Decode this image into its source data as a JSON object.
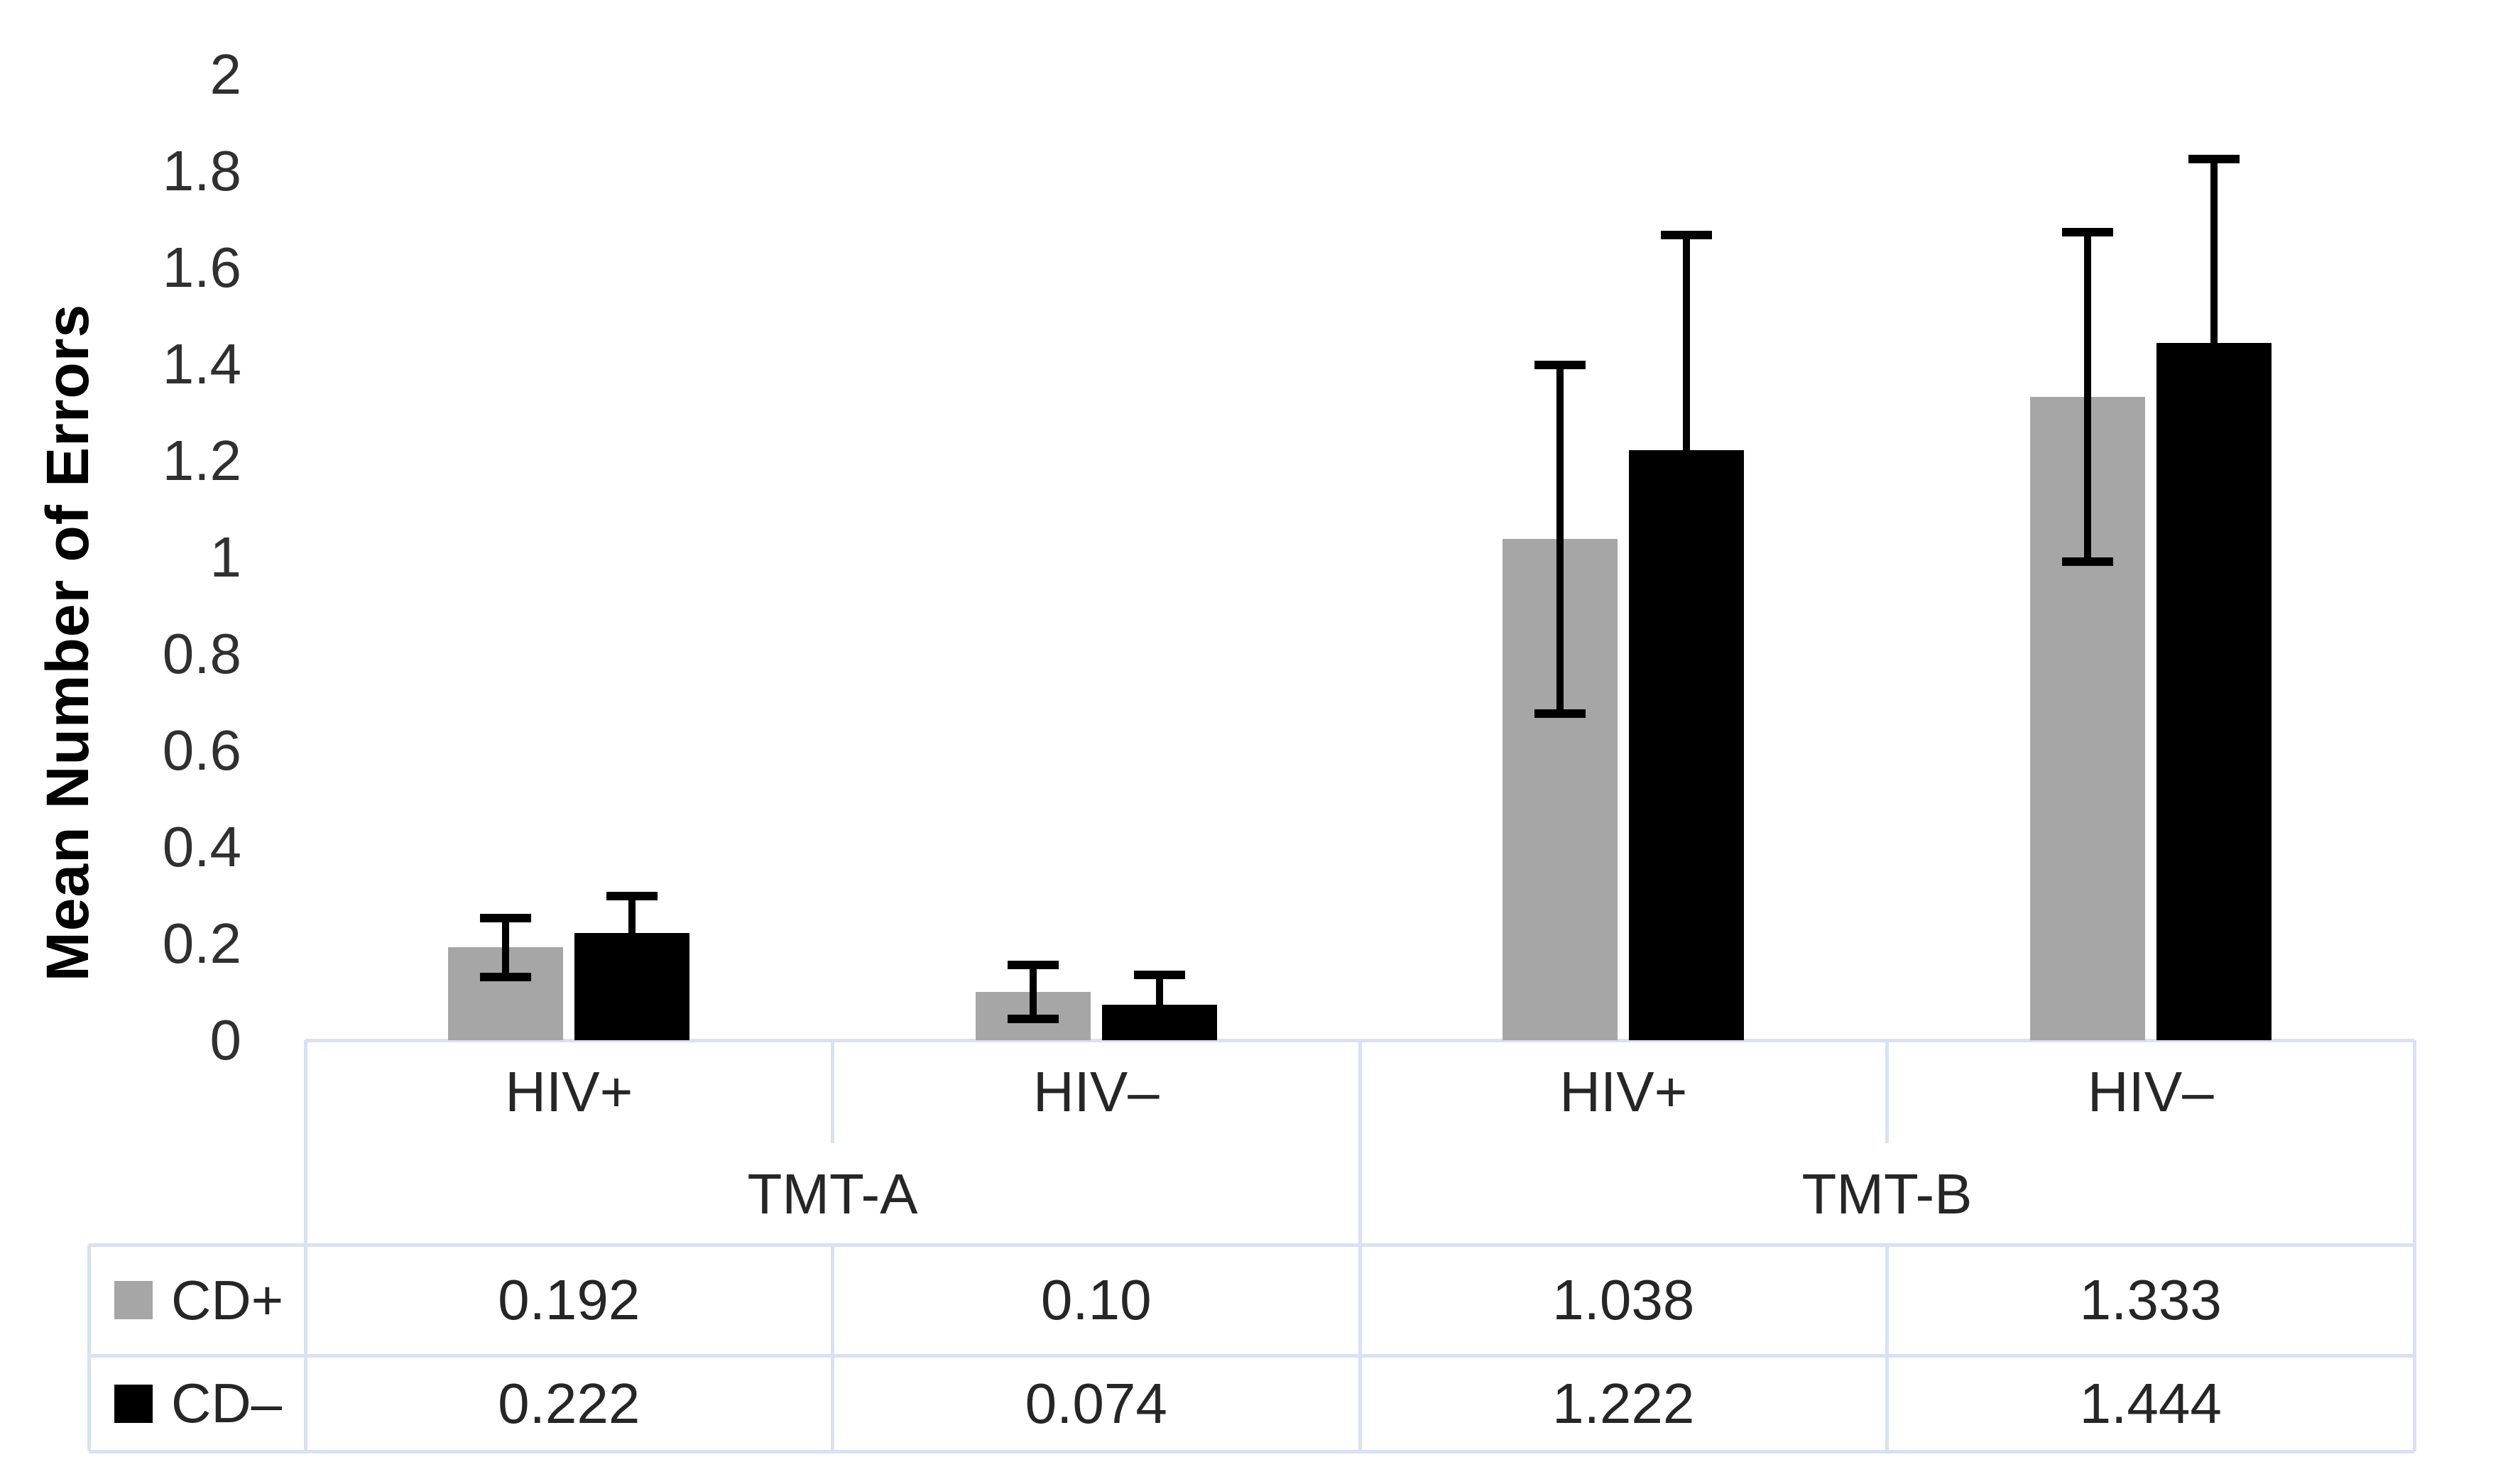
{
  "chart_data": {
    "type": "bar",
    "title": "",
    "xlabel": "",
    "ylabel": "Mean Number of Errors",
    "ylim": [
      0,
      2
    ],
    "ytick_values": [
      0,
      0.2,
      0.4,
      0.6,
      0.8,
      1,
      1.2,
      1.4,
      1.6,
      1.8,
      2
    ],
    "ytick_labels": [
      "0",
      "0.2",
      "0.4",
      "0.6",
      "0.8",
      "1",
      "1.2",
      "1.4",
      "1.6",
      "1.8",
      "2"
    ],
    "grid": false,
    "error_bars": true,
    "legend_position": "data-table-left",
    "groups": [
      {
        "label": "TMT-A",
        "categories": [
          "HIV+",
          "HIV–"
        ]
      },
      {
        "label": "TMT-B",
        "categories": [
          "HIV+",
          "HIV–"
        ]
      }
    ],
    "categories_flat": [
      "HIV+",
      "HIV–",
      "HIV+",
      "HIV–"
    ],
    "series": [
      {
        "name": "CD+",
        "color": "#a6a6a6",
        "values": [
          0.192,
          0.1,
          1.038,
          1.333
        ],
        "value_labels": [
          "0.192",
          "0.10",
          "1.038",
          "1.333"
        ],
        "errors": [
          0.07,
          0.065,
          0.37,
          0.35
        ]
      },
      {
        "name": "CD–",
        "color": "#000000",
        "values": [
          0.222,
          0.074,
          1.222,
          1.444
        ],
        "value_labels": [
          "0.222",
          "0.074",
          "1.222",
          "1.444"
        ],
        "errors": [
          0.085,
          0.07,
          0.455,
          0.39
        ]
      }
    ],
    "colors": {
      "table_border": "#d9e1f2",
      "tick_text": "#303030",
      "table_text": "#262626",
      "axis_title_text": "#000000",
      "background": "#ffffff"
    }
  }
}
